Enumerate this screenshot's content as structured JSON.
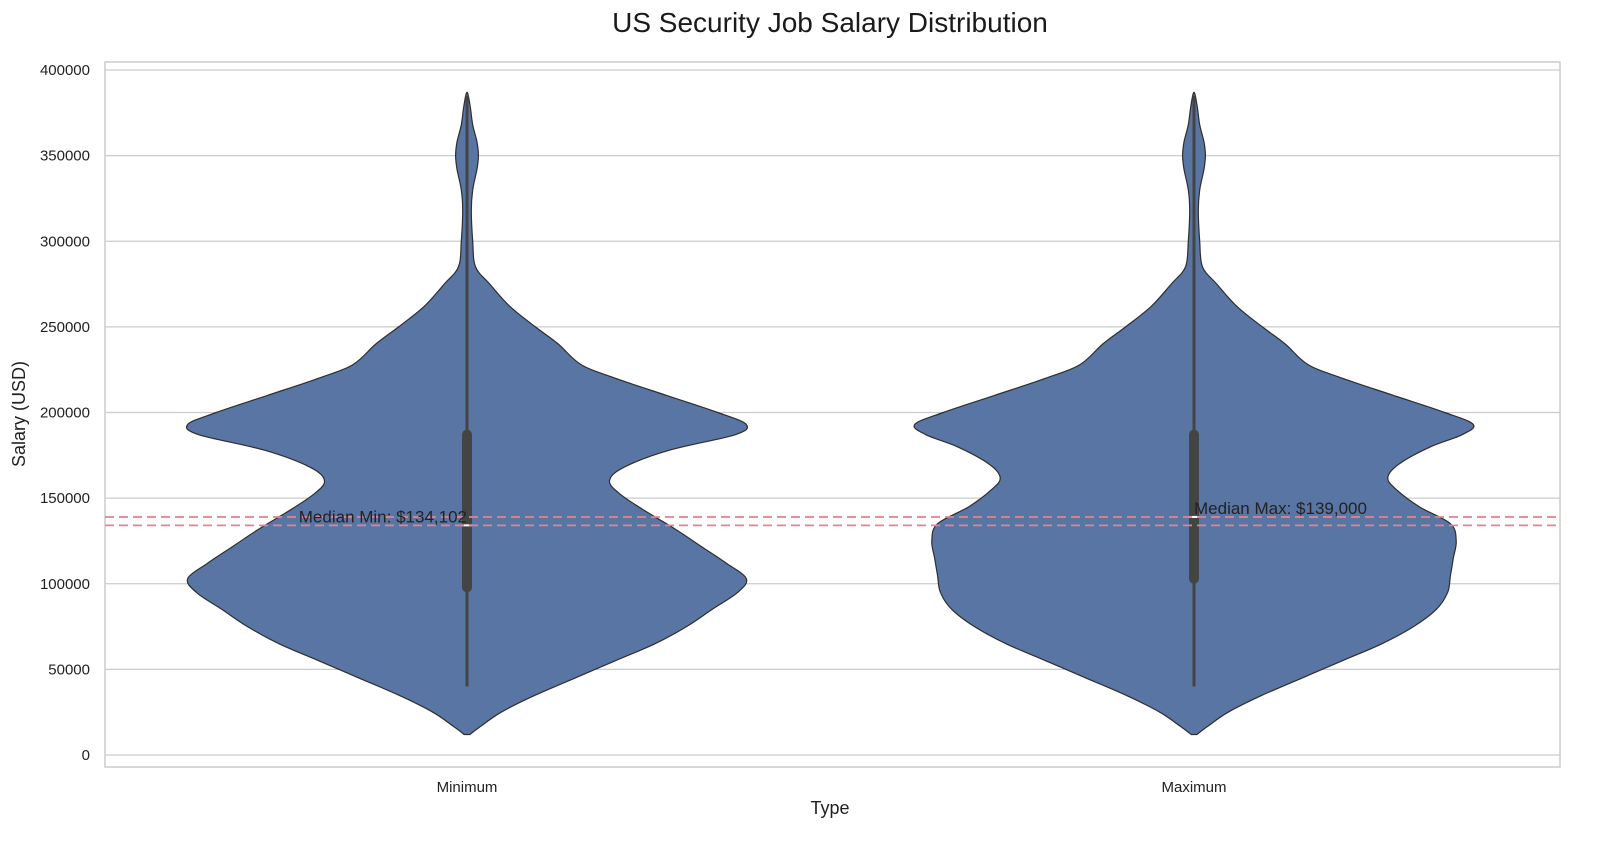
{
  "chart_data": {
    "type": "violin",
    "title": "US Security Job Salary Distribution",
    "xlabel": "Type",
    "ylabel": "Salary (USD)",
    "ylim": [
      0,
      400000
    ],
    "yticks": [
      0,
      50000,
      100000,
      150000,
      200000,
      250000,
      300000,
      350000,
      400000
    ],
    "ytick_labels": [
      "0",
      "50000",
      "100000",
      "150000",
      "200000",
      "250000",
      "300000",
      "350000",
      "400000"
    ],
    "grid": true,
    "categories": [
      "Minimum",
      "Maximum"
    ],
    "series": [
      {
        "name": "Minimum",
        "color": "#5975a4",
        "median": 134102,
        "q1": 95000,
        "q3": 190000,
        "whisker_low": 40000,
        "whisker_high": 385000,
        "density": [
          [
            12000,
            0.01
          ],
          [
            17000,
            0.05
          ],
          [
            25000,
            0.12
          ],
          [
            35000,
            0.24
          ],
          [
            45000,
            0.38
          ],
          [
            55000,
            0.52
          ],
          [
            65000,
            0.66
          ],
          [
            75000,
            0.77
          ],
          [
            85000,
            0.86
          ],
          [
            95000,
            0.95
          ],
          [
            103000,
            0.98
          ],
          [
            112000,
            0.91
          ],
          [
            122000,
            0.82
          ],
          [
            132000,
            0.73
          ],
          [
            142000,
            0.63
          ],
          [
            152000,
            0.54
          ],
          [
            160000,
            0.5
          ],
          [
            168000,
            0.55
          ],
          [
            178000,
            0.71
          ],
          [
            187000,
            0.94
          ],
          [
            193000,
            0.98
          ],
          [
            200000,
            0.88
          ],
          [
            210000,
            0.7
          ],
          [
            220000,
            0.52
          ],
          [
            228000,
            0.4
          ],
          [
            240000,
            0.32
          ],
          [
            250000,
            0.24
          ],
          [
            262000,
            0.15
          ],
          [
            275000,
            0.08
          ],
          [
            285000,
            0.03
          ],
          [
            300000,
            0.02
          ],
          [
            318000,
            0.015
          ],
          [
            330000,
            0.02
          ],
          [
            342000,
            0.035
          ],
          [
            350000,
            0.04
          ],
          [
            358000,
            0.035
          ],
          [
            368000,
            0.02
          ],
          [
            378000,
            0.012
          ],
          [
            386000,
            0.003
          ]
        ]
      },
      {
        "name": "Maximum",
        "color": "#5975a4",
        "median": 139000,
        "q1": 100000,
        "q3": 190000,
        "whisker_low": 40000,
        "whisker_high": 385000,
        "density": [
          [
            12000,
            0.01
          ],
          [
            17000,
            0.05
          ],
          [
            25000,
            0.12
          ],
          [
            35000,
            0.24
          ],
          [
            45000,
            0.38
          ],
          [
            55000,
            0.52
          ],
          [
            65000,
            0.66
          ],
          [
            75000,
            0.77
          ],
          [
            85000,
            0.85
          ],
          [
            95000,
            0.89
          ],
          [
            105000,
            0.9
          ],
          [
            115000,
            0.91
          ],
          [
            125000,
            0.92
          ],
          [
            135000,
            0.9
          ],
          [
            145000,
            0.79
          ],
          [
            155000,
            0.71
          ],
          [
            162000,
            0.68
          ],
          [
            170000,
            0.72
          ],
          [
            180000,
            0.83
          ],
          [
            187000,
            0.94
          ],
          [
            193000,
            0.98
          ],
          [
            200000,
            0.88
          ],
          [
            210000,
            0.7
          ],
          [
            220000,
            0.52
          ],
          [
            228000,
            0.4
          ],
          [
            240000,
            0.32
          ],
          [
            250000,
            0.24
          ],
          [
            262000,
            0.15
          ],
          [
            275000,
            0.08
          ],
          [
            285000,
            0.03
          ],
          [
            300000,
            0.02
          ],
          [
            318000,
            0.015
          ],
          [
            330000,
            0.02
          ],
          [
            342000,
            0.035
          ],
          [
            350000,
            0.04
          ],
          [
            358000,
            0.035
          ],
          [
            368000,
            0.02
          ],
          [
            378000,
            0.012
          ],
          [
            386000,
            0.003
          ]
        ]
      }
    ],
    "reference_lines": [
      {
        "name": "median-min",
        "value": 134102,
        "color": "#e8818c",
        "style": "dashed"
      },
      {
        "name": "median-max",
        "value": 139000,
        "color": "#e8818c",
        "style": "dashed"
      }
    ],
    "annotations": [
      {
        "text": "Median Min: $134,102",
        "category": "Minimum",
        "value": 134102
      },
      {
        "text": "Median Max: $139,000",
        "category": "Maximum",
        "value": 139000
      }
    ]
  }
}
